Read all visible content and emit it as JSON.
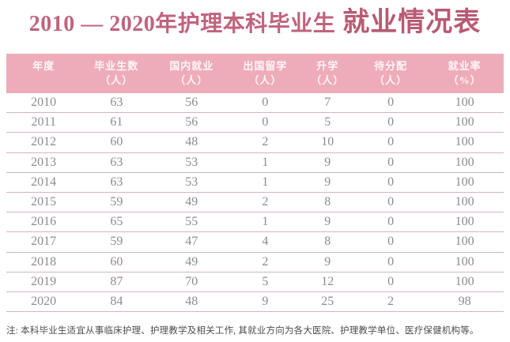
{
  "title": {
    "prefix": "2010 — 2020年护理本科毕业生",
    "emphasis": "就业情况表"
  },
  "chart_data": {
    "type": "table",
    "title": "2010 — 2020年护理本科毕业生就业情况表",
    "columns": [
      {
        "label": "年度",
        "unit": ""
      },
      {
        "label": "毕业生数",
        "unit": "（人）"
      },
      {
        "label": "国内就业",
        "unit": "（人）"
      },
      {
        "label": "出国留学",
        "unit": "（人）"
      },
      {
        "label": "升学",
        "unit": "（人）"
      },
      {
        "label": "待分配",
        "unit": "（人）"
      },
      {
        "label": "就业率",
        "unit": "（%）"
      }
    ],
    "rows": [
      [
        "2010",
        "63",
        "56",
        "0",
        "7",
        "0",
        "100"
      ],
      [
        "2011",
        "61",
        "56",
        "0",
        "5",
        "0",
        "100"
      ],
      [
        "2012",
        "60",
        "48",
        "2",
        "10",
        "0",
        "100"
      ],
      [
        "2013",
        "63",
        "53",
        "1",
        "9",
        "0",
        "100"
      ],
      [
        "2014",
        "63",
        "53",
        "1",
        "9",
        "0",
        "100"
      ],
      [
        "2015",
        "59",
        "49",
        "2",
        "8",
        "0",
        "100"
      ],
      [
        "2016",
        "65",
        "55",
        "1",
        "9",
        "0",
        "100"
      ],
      [
        "2017",
        "59",
        "47",
        "4",
        "8",
        "0",
        "100"
      ],
      [
        "2018",
        "60",
        "49",
        "2",
        "9",
        "0",
        "100"
      ],
      [
        "2019",
        "87",
        "70",
        "5",
        "12",
        "0",
        "100"
      ],
      [
        "2020",
        "84",
        "48",
        "9",
        "25",
        "2",
        "98"
      ]
    ]
  },
  "note": "注: 本科毕业生适宜从事临床护理、护理教学及相关工作, 其就业方向为各大医院、护理教学单位、医疗保健机构等。",
  "colors": {
    "title": "#c0637c",
    "title_emphasis": "#b85a73",
    "header_bg": "#eeacb9",
    "header_text": "#fdf6f7",
    "row_text": "#8c8c8c",
    "separator": "#d5b3bd",
    "note_text": "#4d4d4d"
  }
}
